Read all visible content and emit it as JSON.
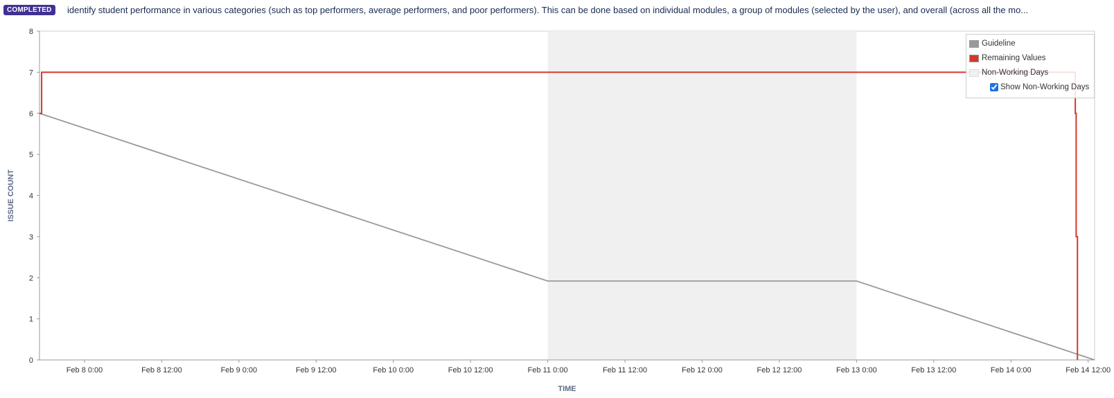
{
  "header": {
    "status_badge": "COMPLETED",
    "summary": "identify student performance in various categories (such as top performers, average performers, and poor performers). This can be done based on individual modules, a group of modules (selected by the user), and overall (across all the mo..."
  },
  "legend": {
    "items": [
      {
        "label": "Guideline",
        "color": "#999999"
      },
      {
        "label": "Remaining Values",
        "color": "#d0392b"
      },
      {
        "label": "Non-Working Days",
        "color": "#f0f0f0"
      }
    ],
    "checkbox_label": "Show Non-Working Days",
    "checkbox_checked": true
  },
  "chart_data": {
    "type": "line",
    "xlabel": "TIME",
    "ylabel": "ISSUE COUNT",
    "ylim": [
      0,
      8
    ],
    "y_ticks": [
      "0",
      "1",
      "2",
      "3",
      "4",
      "5",
      "6",
      "7",
      "8"
    ],
    "x_tick_labels": [
      "Feb 8 0:00",
      "Feb 8 12:00",
      "Feb 9 0:00",
      "Feb 9 12:00",
      "Feb 10 0:00",
      "Feb 10 12:00",
      "Feb 11 0:00",
      "Feb 11 12:00",
      "Feb 12 0:00",
      "Feb 12 12:00",
      "Feb 13 0:00",
      "Feb 13 12:00",
      "Feb 14 0:00",
      "Feb 14 12:00"
    ],
    "x_range": [
      "Feb 7 2024 17:00",
      "Feb 14 13:00"
    ],
    "non_working_periods": [
      {
        "start": "Feb 11 0:00",
        "end": "Feb 13 0:00",
        "color": "#f0f0f0"
      }
    ],
    "series": [
      {
        "name": "Guideline",
        "color": "#999999",
        "points": [
          {
            "x": "Feb 7 17:00",
            "y": 6
          },
          {
            "x": "Feb 11 0:00",
            "y": 1.92
          },
          {
            "x": "Feb 13 0:00",
            "y": 1.92
          },
          {
            "x": "Feb 14 13:00",
            "y": 0
          }
        ]
      },
      {
        "name": "Remaining Values",
        "color": "#d0392b",
        "step": true,
        "points": [
          {
            "x": "Feb 7 17:00",
            "y": 6
          },
          {
            "x": "Feb 7 17:20",
            "y": 7
          },
          {
            "x": "Feb 14 10:00",
            "y": 6
          },
          {
            "x": "Feb 14 10:08",
            "y": 3
          },
          {
            "x": "Feb 14 10:20",
            "y": 1
          },
          {
            "x": "Feb 14 10:20",
            "y": 0
          }
        ]
      }
    ]
  }
}
